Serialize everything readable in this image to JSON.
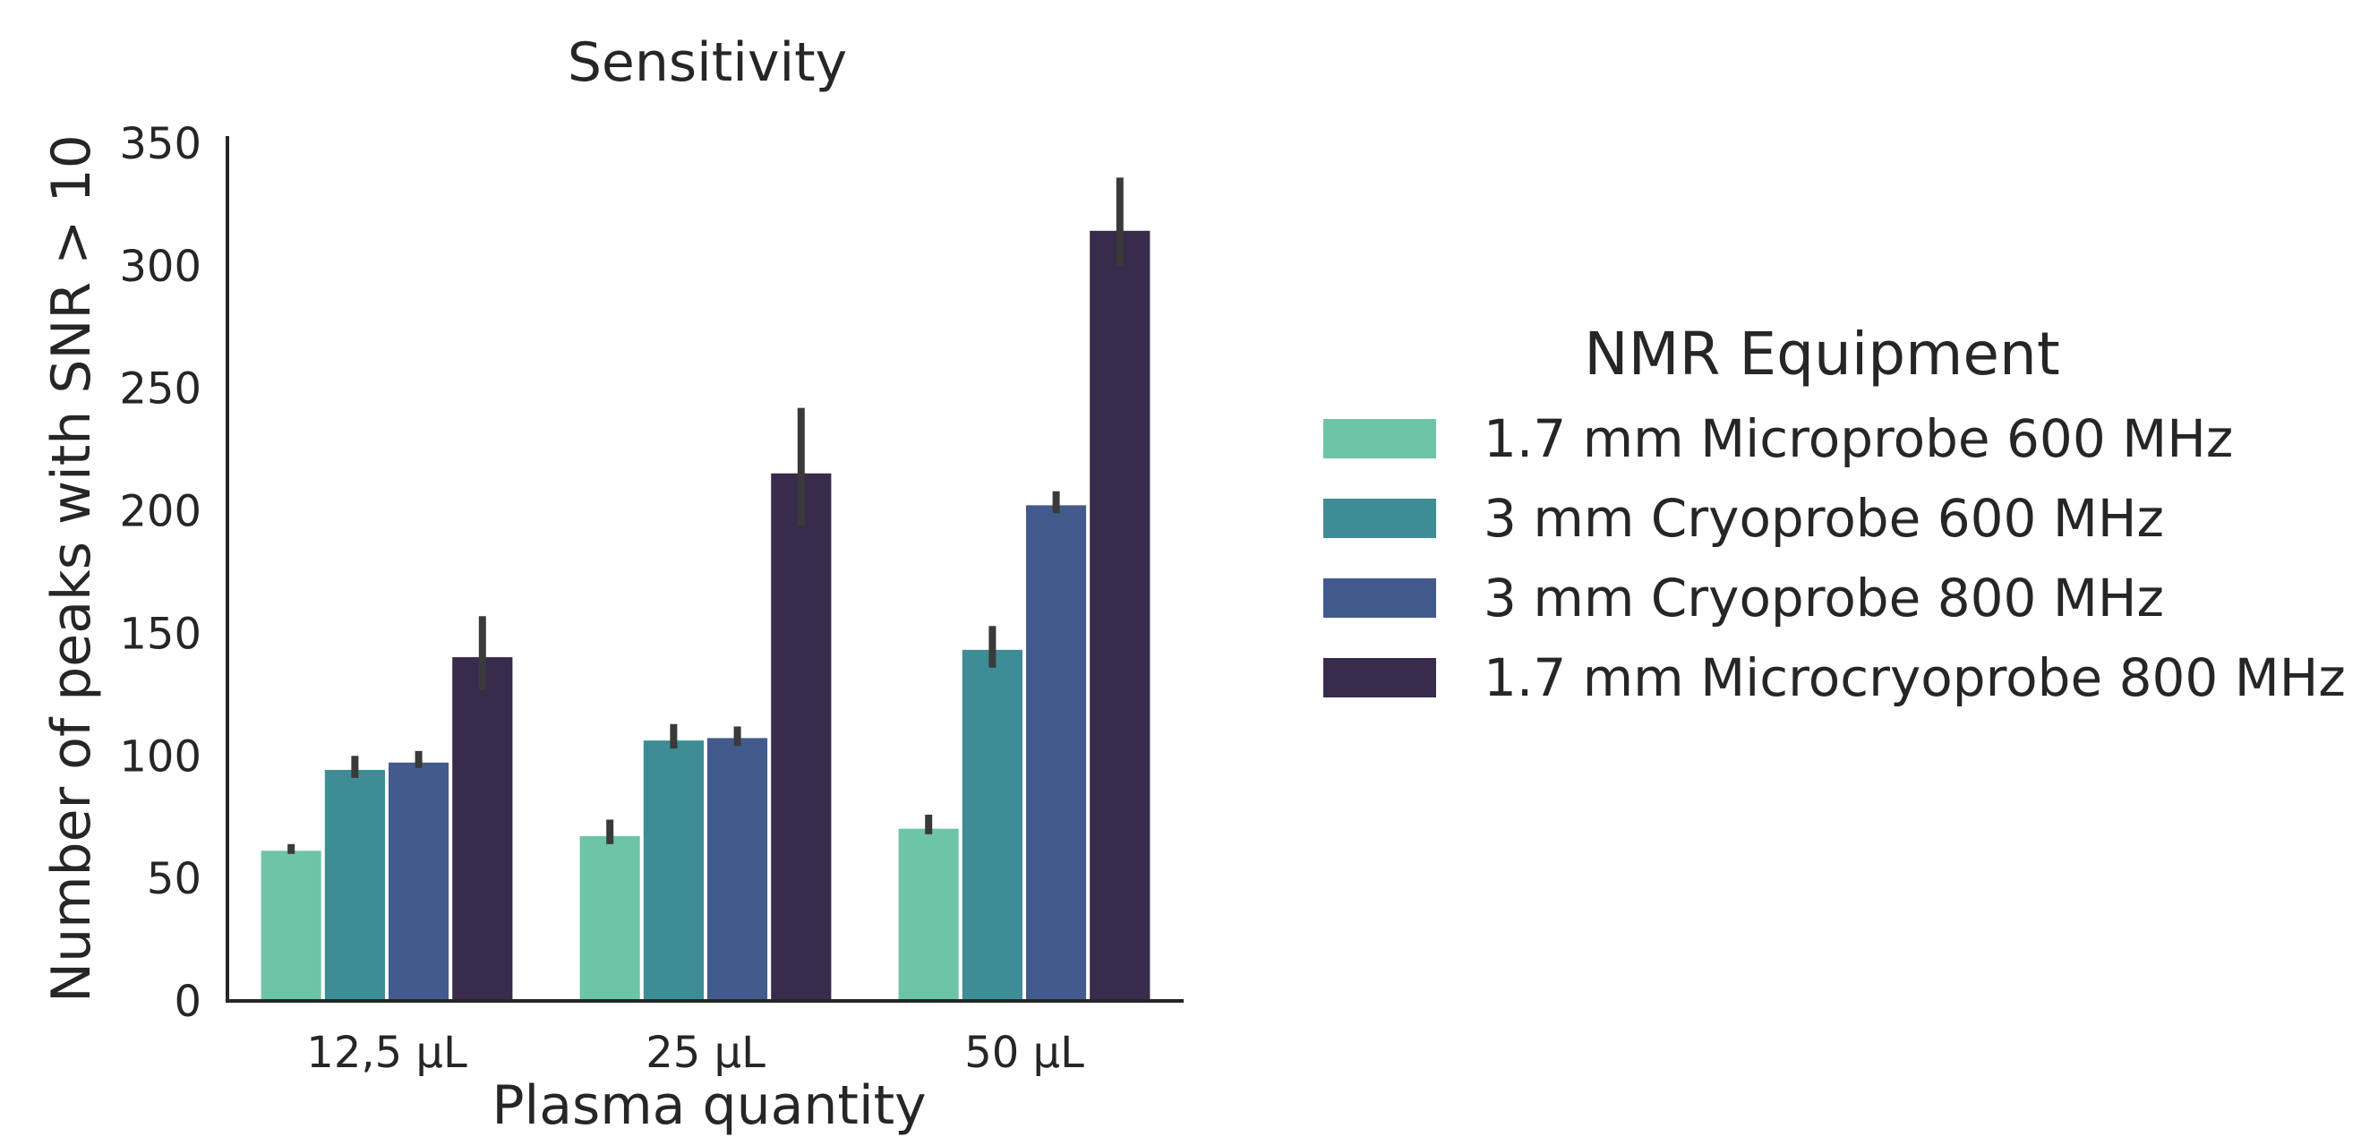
{
  "chart_data": {
    "type": "bar",
    "title": "Sensitivity",
    "xlabel": "Plasma quantity",
    "ylabel": "Number of peaks with SNR > 10",
    "categories": [
      "12,5 µL",
      "25 µL",
      "50 µL"
    ],
    "ylim": [
      0,
      350
    ],
    "yticks": [
      0,
      50,
      100,
      150,
      200,
      250,
      300,
      350
    ],
    "legend": {
      "title": "NMR Equipment",
      "placement": "right, outside plot"
    },
    "grid": false,
    "series": [
      {
        "name": "1.7 mm Microprobe 600 MHz",
        "color": "#6ec4a7",
        "values": [
          62,
          68,
          71
        ],
        "error_low": [
          60,
          64,
          68
        ],
        "error_high": [
          64,
          74,
          76
        ]
      },
      {
        "name": "3 mm Cryoprobe 600 MHz",
        "color": "#3e8d96",
        "values": [
          95,
          107,
          144
        ],
        "error_low": [
          91,
          103,
          136
        ],
        "error_high": [
          100,
          113,
          153
        ]
      },
      {
        "name": "3 mm Cryoprobe 800 MHz",
        "color": "#435b8c",
        "values": [
          98,
          108,
          203
        ],
        "error_low": [
          95,
          104,
          199
        ],
        "error_high": [
          102,
          112,
          208
        ]
      },
      {
        "name": "1.7 mm Microcryoprobe 800 MHz",
        "color": "#382b4b",
        "values": [
          141,
          216,
          315
        ],
        "error_low": [
          127,
          194,
          300
        ],
        "error_high": [
          157,
          242,
          336
        ]
      }
    ]
  }
}
